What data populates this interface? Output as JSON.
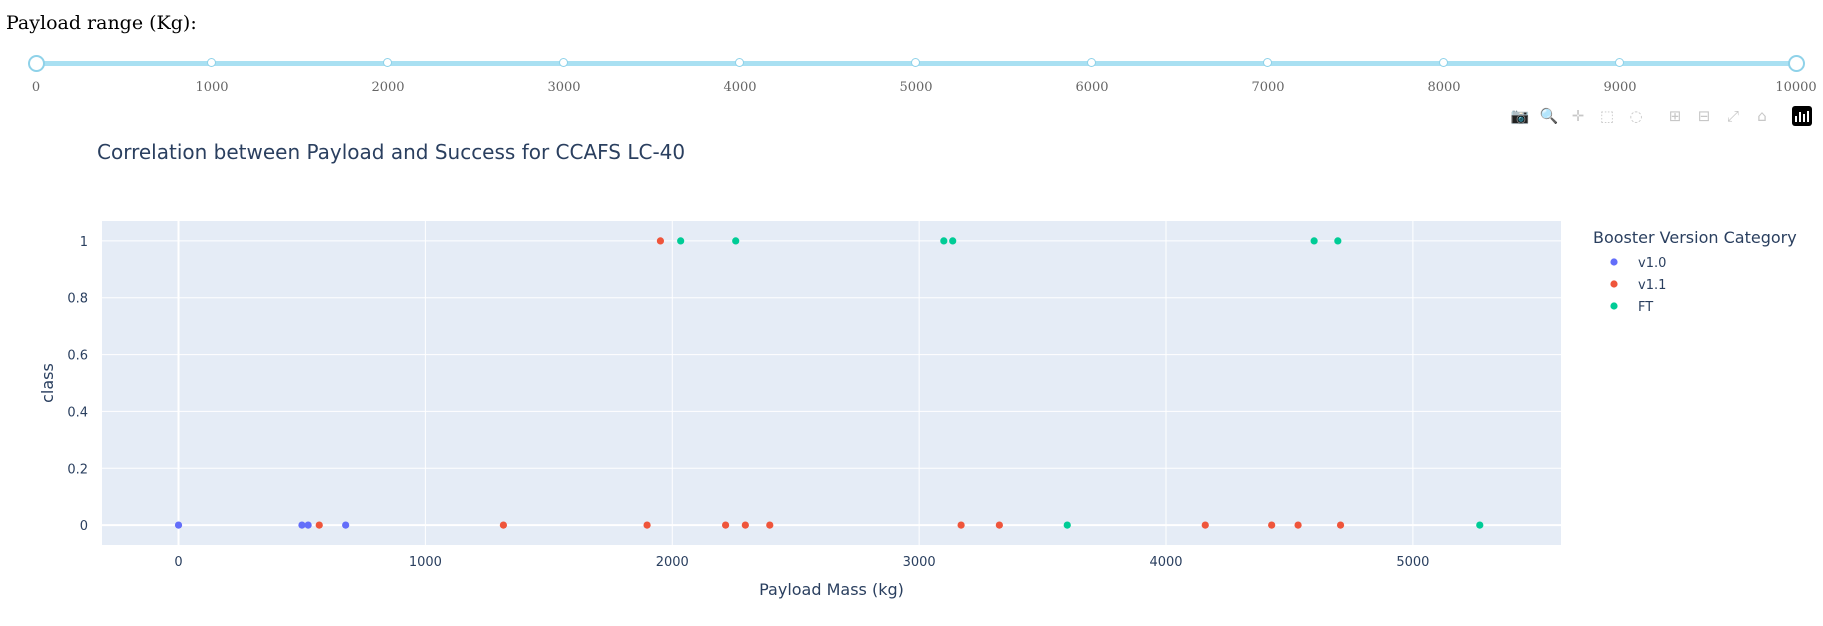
{
  "slider": {
    "label": "Payload range (Kg):",
    "min": 0,
    "max": 10000,
    "marks": [
      "0",
      "1000",
      "2000",
      "3000",
      "4000",
      "5000",
      "6000",
      "7000",
      "8000",
      "9000",
      "10000"
    ],
    "value": [
      0,
      10000
    ],
    "color": "#a9e0f2"
  },
  "modebar": {
    "buttons": [
      {
        "icon": "camera-icon",
        "label": "Download plot as a png"
      },
      {
        "icon": "zoom-icon",
        "label": "Zoom"
      },
      {
        "icon": "pan-icon",
        "label": "Pan"
      },
      {
        "icon": "box-select-icon",
        "label": "Box Select"
      },
      {
        "icon": "lasso-select-icon",
        "label": "Lasso Select"
      },
      {
        "icon": "zoom-in-icon",
        "label": "Zoom in"
      },
      {
        "icon": "zoom-out-icon",
        "label": "Zoom out"
      },
      {
        "icon": "autoscale-icon",
        "label": "Autoscale"
      },
      {
        "icon": "reset-axes-icon",
        "label": "Reset axes"
      },
      {
        "icon": "plotly-logo-icon",
        "label": "Produced with Plotly"
      }
    ]
  },
  "chart_data": {
    "type": "scatter",
    "title": "Correlation between Payload and Success for CCAFS LC-40",
    "xlabel": "Payload Mass (kg)",
    "ylabel": "class",
    "xlim": [
      -310,
      5600
    ],
    "ylim": [
      -0.07,
      1.07
    ],
    "xticks": [
      0,
      1000,
      2000,
      3000,
      4000,
      5000
    ],
    "yticks": [
      0,
      0.2,
      0.4,
      0.6,
      0.8,
      1
    ],
    "xtick_labels": [
      "0",
      "1000",
      "2000",
      "3000",
      "4000",
      "5000"
    ],
    "ytick_labels": [
      "0",
      "0.2",
      "0.4",
      "0.6",
      "0.8",
      "1"
    ],
    "grid": true,
    "plot_bgcolor": "#e5ecf6",
    "legend": {
      "title": "Booster Version Category",
      "placement": "right"
    },
    "series": [
      {
        "name": "v1.0",
        "color": "#636efa",
        "points": [
          [
            0,
            0
          ],
          [
            500,
            0
          ],
          [
            525,
            0
          ],
          [
            677,
            0
          ]
        ]
      },
      {
        "name": "v1.1",
        "color": "#ef553b",
        "points": [
          [
            570,
            0
          ],
          [
            1316,
            0
          ],
          [
            1898,
            0
          ],
          [
            1952,
            1
          ],
          [
            2216,
            0
          ],
          [
            2296,
            0
          ],
          [
            2395,
            0
          ],
          [
            3170,
            0
          ],
          [
            3325,
            0
          ],
          [
            4159,
            0
          ],
          [
            4428,
            0
          ],
          [
            4535,
            0
          ],
          [
            4707,
            0
          ]
        ]
      },
      {
        "name": "FT",
        "color": "#00cc96",
        "points": [
          [
            2034,
            1
          ],
          [
            2257,
            1
          ],
          [
            3136,
            1
          ],
          [
            3100,
            1
          ],
          [
            3600,
            0
          ],
          [
            4600,
            1
          ],
          [
            4696,
            1
          ],
          [
            5271,
            0
          ]
        ]
      }
    ]
  }
}
